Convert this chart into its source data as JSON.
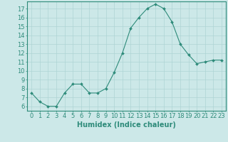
{
  "xlabel": "Humidex (Indice chaleur)",
  "x": [
    0,
    1,
    2,
    3,
    4,
    5,
    6,
    7,
    8,
    9,
    10,
    11,
    12,
    13,
    14,
    15,
    16,
    17,
    18,
    19,
    20,
    21,
    22,
    23
  ],
  "y": [
    7.5,
    6.5,
    6.0,
    6.0,
    7.5,
    8.5,
    8.5,
    7.5,
    7.5,
    8.0,
    9.8,
    12.0,
    14.8,
    16.0,
    17.0,
    17.5,
    17.0,
    15.5,
    13.0,
    11.8,
    10.8,
    11.0,
    11.2,
    11.2
  ],
  "line_color": "#2e8b7a",
  "marker": "D",
  "marker_size": 2,
  "bg_color": "#cce8e8",
  "grid_color": "#aed4d4",
  "ylim": [
    5.5,
    17.8
  ],
  "xlim": [
    -0.5,
    23.5
  ],
  "yticks": [
    6,
    7,
    8,
    9,
    10,
    11,
    12,
    13,
    14,
    15,
    16,
    17
  ],
  "xticks": [
    0,
    1,
    2,
    3,
    4,
    5,
    6,
    7,
    8,
    9,
    10,
    11,
    12,
    13,
    14,
    15,
    16,
    17,
    18,
    19,
    20,
    21,
    22,
    23
  ],
  "tick_label_fontsize": 6,
  "xlabel_fontsize": 7
}
